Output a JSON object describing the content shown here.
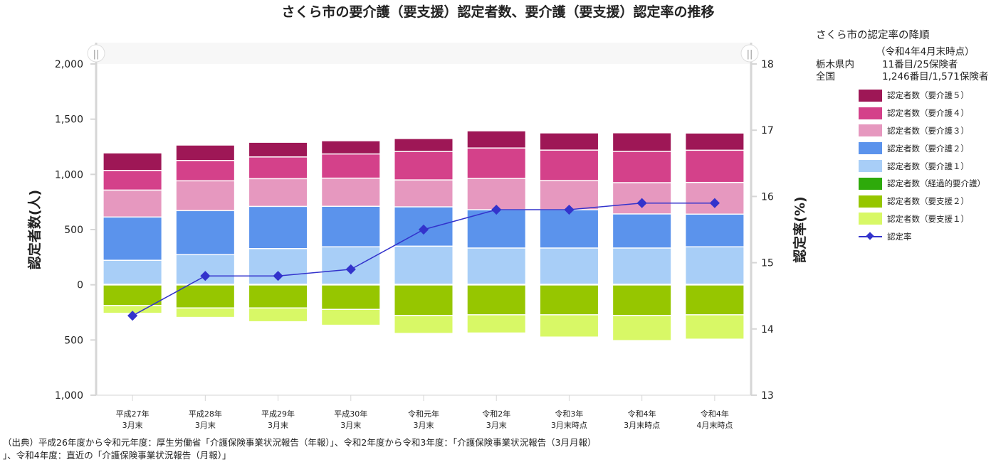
{
  "title": "さくら市の要介護（要支援）認定者数、要介護（要支援）認定率の推移",
  "info": {
    "heading": "さくら市の認定率の降順",
    "as_of": "（令和4年4月末時点）",
    "rows": [
      {
        "label": "栃木県内",
        "value": "11番目/25保険者"
      },
      {
        "label": "全国",
        "value": "1,246番目/1,571保険者"
      }
    ]
  },
  "footnote": {
    "line1": "（出典）平成26年度から令和元年度：厚生労働省「介護保険事業状況報告（年報）」、令和2年度から令和3年度：「介護保険事業状況報告（3月月報）",
    "line2": "」、令和4年度：直近の「介護保険事業状況報告（月報）」"
  },
  "chart_data": {
    "type": "bar",
    "stacked": true,
    "note_visual": "care-level counts stacked above zero, support-level counts stacked below zero; rate plotted as line on right axis",
    "categories": [
      [
        "平成27年",
        "3月末"
      ],
      [
        "平成28年",
        "3月末"
      ],
      [
        "平成29年",
        "3月末"
      ],
      [
        "平成30年",
        "3月末"
      ],
      [
        "令和元年",
        "3月末"
      ],
      [
        "令和2年",
        "3月末"
      ],
      [
        "令和3年",
        "3月末時点"
      ],
      [
        "令和4年",
        "3月末時点"
      ],
      [
        "令和4年",
        "4月末時点"
      ]
    ],
    "left_axis": {
      "label": "認定者数(人)",
      "range": [
        -1000,
        2000
      ],
      "ticks": [
        2000,
        1500,
        1000,
        500,
        0,
        -500,
        -1000
      ],
      "tick_labels": [
        "2,000",
        "1,500",
        "1,000",
        "500",
        "0",
        "500",
        "1,000"
      ]
    },
    "right_axis": {
      "label": "認定率(%)",
      "range": [
        13,
        18
      ],
      "ticks": [
        18,
        17,
        16,
        15,
        14,
        13
      ],
      "tick_labels": [
        "18",
        "17",
        "16",
        "15",
        "14",
        "13"
      ]
    },
    "legend_position": "right",
    "series": [
      {
        "name": "認定者数（要介護５）",
        "color": "#9e1756",
        "side": "up",
        "values": [
          159,
          140,
          133,
          120,
          118,
          156,
          156,
          169,
          156
        ]
      },
      {
        "name": "認定者数（要介護４）",
        "color": "#d4418a",
        "side": "up",
        "values": [
          178,
          184,
          197,
          219,
          257,
          276,
          276,
          283,
          292
        ]
      },
      {
        "name": "認定者数（要介護３）",
        "color": "#e698bf",
        "side": "up",
        "values": [
          244,
          270,
          251,
          255,
          244,
          283,
          264,
          283,
          287
        ]
      },
      {
        "name": "認定者数（要介護２）",
        "color": "#5b93ec",
        "side": "up",
        "values": [
          392,
          399,
          382,
          367,
          356,
          347,
          347,
          309,
          296
        ]
      },
      {
        "name": "認定者数（要介護１）",
        "color": "#a8cef7",
        "side": "up",
        "values": [
          217,
          268,
          323,
          339,
          345,
          328,
          328,
          328,
          339
        ]
      },
      {
        "name": "認定者数（経過的要介護）",
        "color": "#2eaa0b",
        "side": "down",
        "values": [
          0,
          0,
          0,
          0,
          0,
          0,
          0,
          0,
          0
        ]
      },
      {
        "name": "認定者数（要支援２）",
        "color": "#96c600",
        "side": "down",
        "values": [
          186,
          208,
          208,
          221,
          276,
          270,
          270,
          276,
          270
        ]
      },
      {
        "name": "認定者数（要支援１）",
        "color": "#d8f866",
        "side": "down",
        "values": [
          71,
          86,
          125,
          144,
          163,
          165,
          202,
          228,
          221
        ]
      }
    ],
    "line_series": {
      "name": "認定率",
      "color": "#3333cc",
      "values": [
        14.2,
        14.8,
        14.8,
        14.9,
        15.5,
        15.8,
        15.8,
        15.9,
        15.9
      ]
    }
  }
}
